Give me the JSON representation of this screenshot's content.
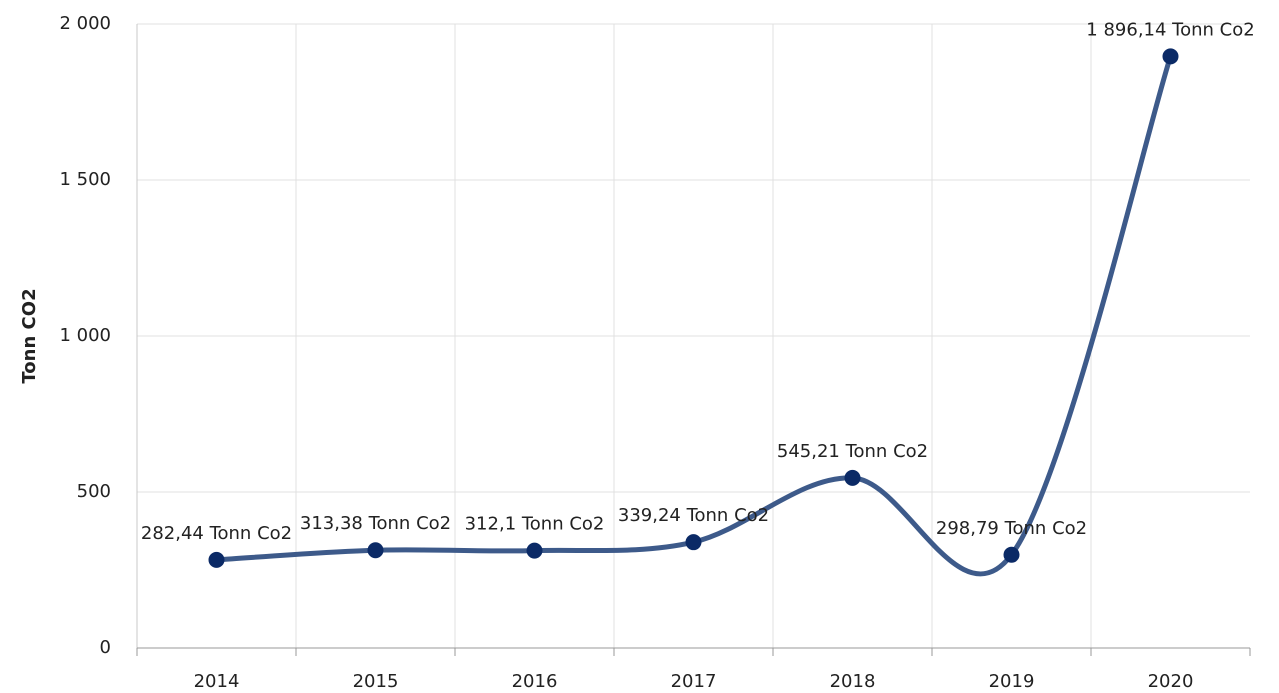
{
  "chart_data": {
    "type": "line",
    "y_label": "Tonn CO2",
    "categories": [
      "2014",
      "2015",
      "2016",
      "2017",
      "2018",
      "2019",
      "2020"
    ],
    "values": [
      282.44,
      313.38,
      312.1,
      339.24,
      545.21,
      298.79,
      1896.14
    ],
    "value_labels": [
      "282,44 Tonn Co2",
      "313,38 Tonn Co2",
      "312,1 Tonn Co2",
      "339,24 Tonn Co2",
      "545,21 Tonn Co2",
      "298,79 Tonn Co2",
      "1 896,14 Tonn Co2"
    ],
    "color": "#3d5a8a",
    "marker_color": "#0b2a66",
    "ylim": [
      0,
      2000
    ],
    "yticks": [
      0,
      500,
      {
        "value": 1000,
        "label": "1 000"
      },
      {
        "value": 1500,
        "label": "1 500"
      },
      {
        "value": 2000,
        "label": "2 000"
      }
    ],
    "grid": true
  }
}
